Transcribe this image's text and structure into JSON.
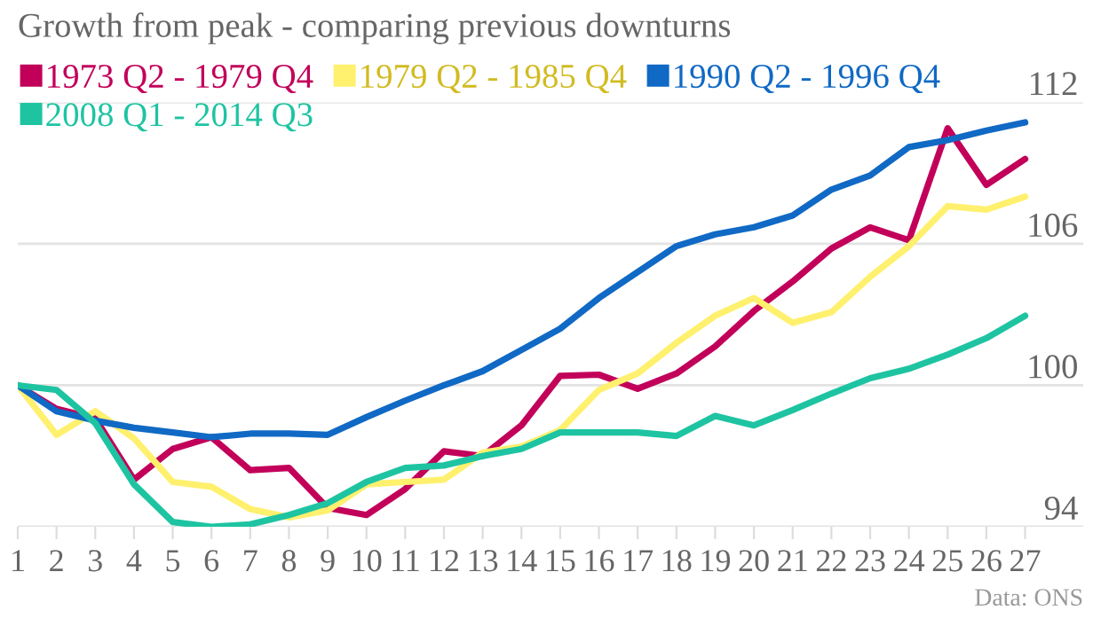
{
  "chart_data": {
    "type": "line",
    "title": "Growth from peak - comparing previous downturns",
    "x": [
      1,
      2,
      3,
      4,
      5,
      6,
      7,
      8,
      9,
      10,
      11,
      12,
      13,
      14,
      15,
      16,
      17,
      18,
      19,
      20,
      21,
      22,
      23,
      24,
      25,
      26,
      27
    ],
    "series": [
      {
        "name": "1973 Q2 - 1979 Q4",
        "color": "#c2005a",
        "values": [
          100,
          99.0,
          98.6,
          96.0,
          97.3,
          97.8,
          96.4,
          96.5,
          94.8,
          94.5,
          95.6,
          97.2,
          97.0,
          98.3,
          100.4,
          100.45,
          99.85,
          100.5,
          101.65,
          103.15,
          104.4,
          105.8,
          106.7,
          106.15,
          110.9,
          108.5,
          109.6
        ]
      },
      {
        "name": "1979 Q2 - 1985 Q4",
        "color": "#fff06e",
        "values": [
          100,
          97.9,
          98.9,
          97.75,
          95.9,
          95.7,
          94.75,
          94.4,
          94.7,
          95.8,
          95.9,
          96.0,
          97.15,
          97.4,
          98.1,
          99.8,
          100.5,
          101.8,
          102.95,
          103.7,
          102.65,
          103.1,
          104.6,
          105.9,
          107.6,
          107.45,
          108.0
        ]
      },
      {
        "name": "1990 Q2 - 1996 Q4",
        "color": "#1069c4",
        "values": [
          100,
          98.9,
          98.5,
          98.2,
          98.0,
          97.8,
          97.95,
          97.95,
          97.9,
          98.65,
          99.35,
          100.0,
          100.6,
          101.5,
          102.4,
          103.7,
          104.8,
          105.9,
          106.4,
          106.7,
          107.2,
          108.3,
          108.9,
          110.1,
          110.4,
          110.8,
          111.15
        ]
      },
      {
        "name": "2008 Q1 - 2014 Q3",
        "color": "#1ec4a2",
        "values": [
          100,
          99.8,
          98.4,
          95.8,
          94.2,
          94.0,
          94.1,
          94.5,
          95.0,
          95.9,
          96.5,
          96.6,
          97.0,
          97.3,
          98.0,
          98.0,
          98.0,
          97.85,
          98.7,
          98.3,
          98.95,
          99.65,
          100.3,
          100.7,
          101.3,
          102.0,
          102.95
        ]
      }
    ],
    "xlim": [
      1,
      28.5
    ],
    "xticks": [
      1,
      2,
      3,
      4,
      5,
      6,
      7,
      8,
      9,
      10,
      11,
      12,
      13,
      14,
      15,
      16,
      17,
      18,
      19,
      20,
      21,
      22,
      23,
      24,
      25,
      26,
      27
    ],
    "ylim": [
      94,
      112
    ],
    "yticks": [
      94,
      100,
      106,
      112
    ],
    "grid": "y",
    "legend": "top",
    "marker": "none",
    "line_style": "solid",
    "annotations": [
      "Data: ONS"
    ]
  }
}
